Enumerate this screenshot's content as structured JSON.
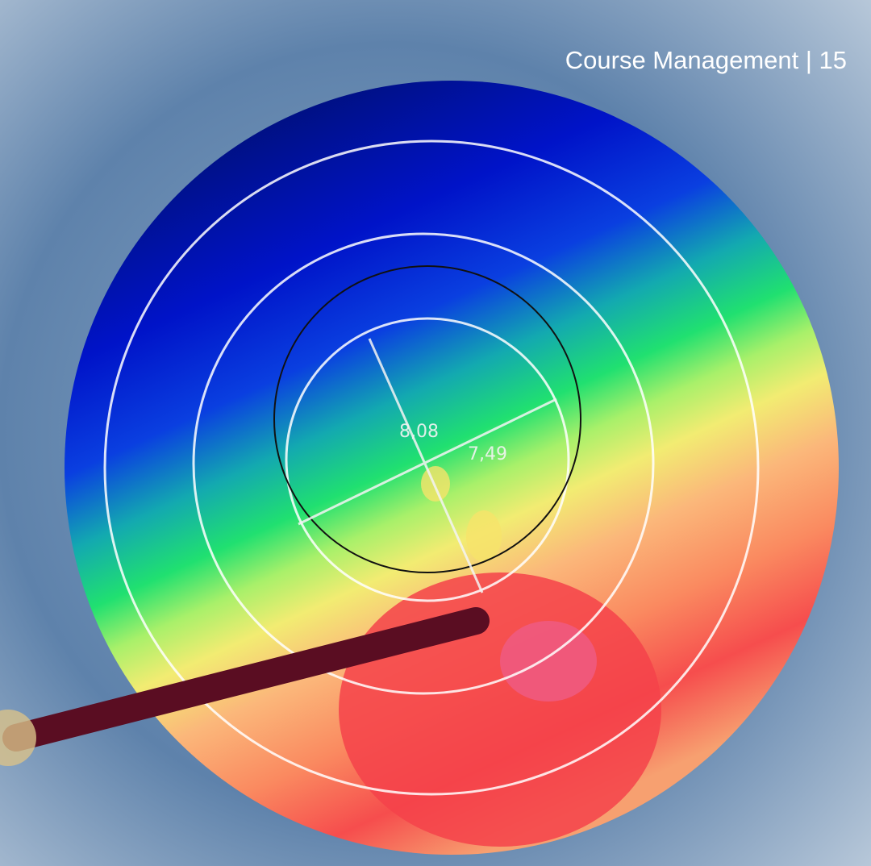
{
  "header": {
    "title": "Course Management | 15"
  },
  "map": {
    "labels": [
      "8,08",
      "7,49"
    ]
  }
}
